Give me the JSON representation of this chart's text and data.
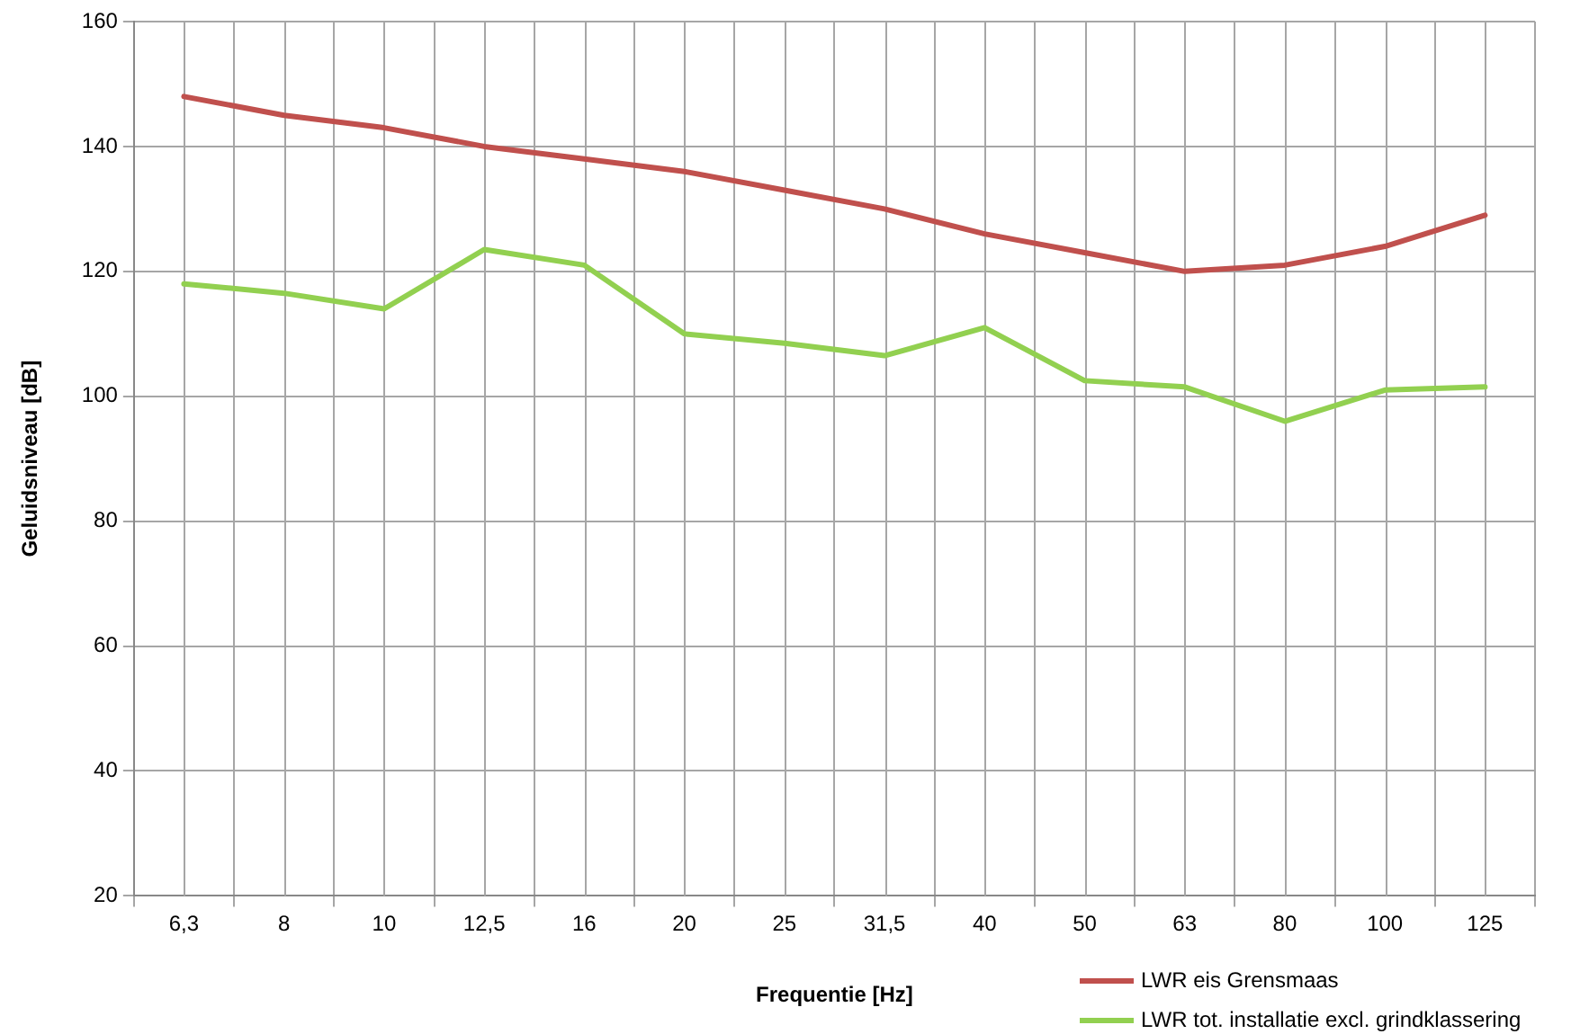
{
  "chart_data": {
    "type": "line",
    "xlabel": "Frequentie [Hz]",
    "ylabel": "Geluidsniveau [dB]",
    "categories": [
      "6,3",
      "8",
      "10",
      "12,5",
      "16",
      "20",
      "25",
      "31,5",
      "40",
      "50",
      "63",
      "80",
      "100",
      "125"
    ],
    "series": [
      {
        "name": "LWR eis Grensmaas",
        "color": "#c0504d",
        "values": [
          148,
          145,
          143,
          140,
          138,
          136,
          133,
          130,
          126,
          123,
          120,
          121,
          124,
          129
        ]
      },
      {
        "name": "LWR tot. installatie excl. grindklassering",
        "color": "#92d050",
        "values": [
          118,
          116.5,
          114,
          123.5,
          121,
          110,
          108.5,
          106.5,
          111,
          102.5,
          101.5,
          96,
          101,
          101.5
        ]
      }
    ],
    "ylim": [
      20,
      160
    ],
    "yticks": [
      20,
      40,
      60,
      80,
      100,
      120,
      140,
      160
    ],
    "grid": true,
    "legend": "bottom right",
    "marker": "none",
    "line_style": "solid"
  }
}
